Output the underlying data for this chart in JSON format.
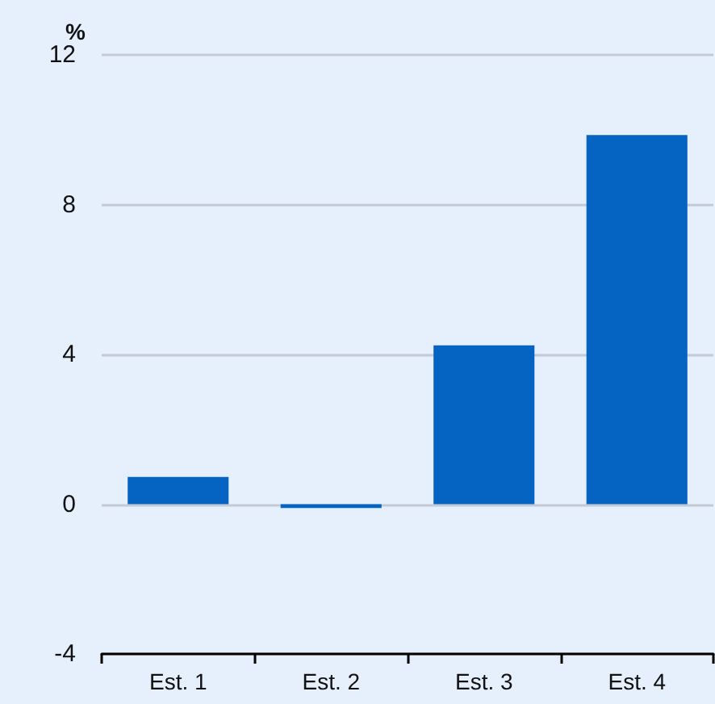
{
  "chart_data": {
    "type": "bar",
    "ylabel": "%",
    "categories": [
      "Est. 1",
      "Est. 2",
      "Est. 3",
      "Est. 4"
    ],
    "values": [
      0.73,
      -0.1,
      4.24,
      9.86
    ],
    "color": "#0563c1",
    "ylim": [
      -4,
      12
    ],
    "yticks": [
      -4,
      0,
      4,
      8,
      12
    ],
    "grid": "y"
  }
}
